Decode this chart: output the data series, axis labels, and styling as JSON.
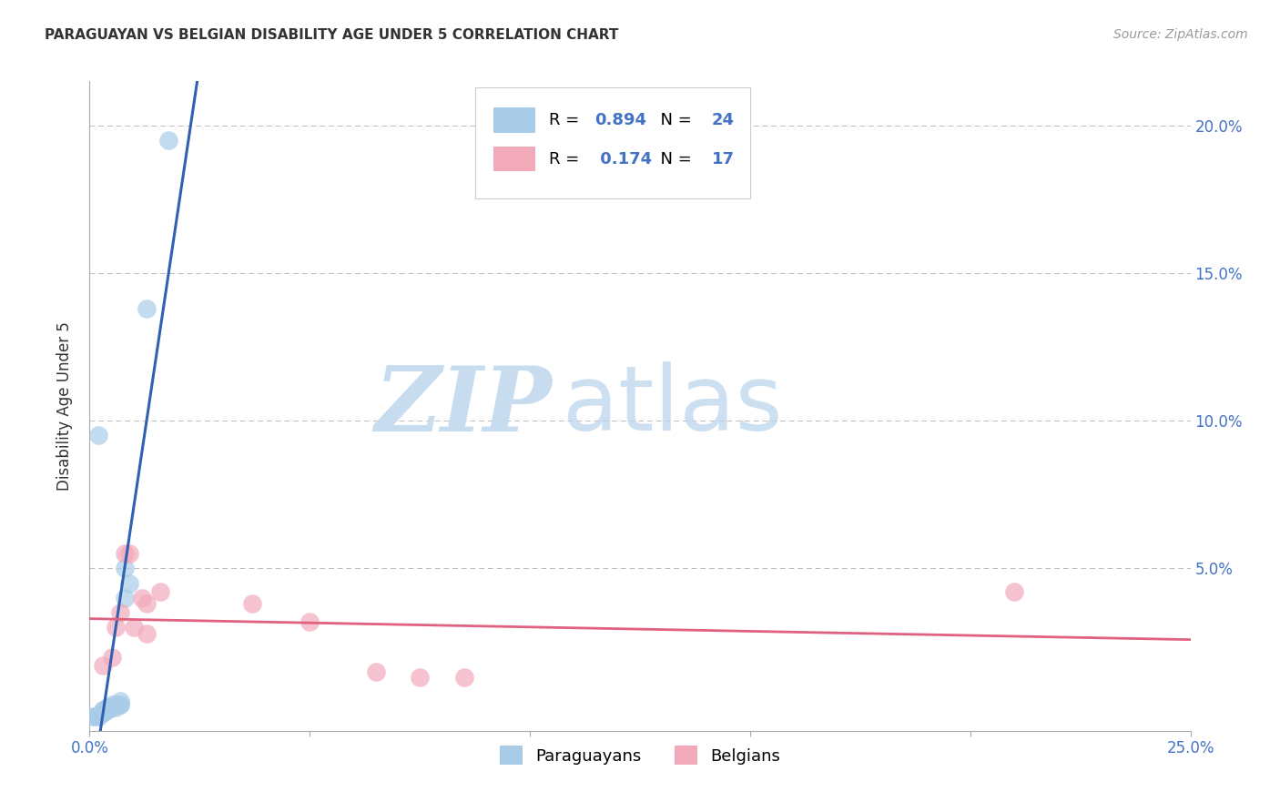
{
  "title": "PARAGUAYAN VS BELGIAN DISABILITY AGE UNDER 5 CORRELATION CHART",
  "source": "Source: ZipAtlas.com",
  "ylabel": "Disability Age Under 5",
  "watermark_zip": "ZIP",
  "watermark_atlas": "atlas",
  "xlim": [
    0.0,
    0.25
  ],
  "ylim": [
    -0.005,
    0.215
  ],
  "yticks": [
    0.0,
    0.05,
    0.1,
    0.15,
    0.2
  ],
  "ytick_labels": [
    "",
    "5.0%",
    "10.0%",
    "15.0%",
    "20.0%"
  ],
  "xticks": [
    0.0,
    0.05,
    0.1,
    0.15,
    0.2,
    0.25
  ],
  "xtick_labels": [
    "0.0%",
    "",
    "",
    "",
    "",
    "25.0%"
  ],
  "r_paraguayan": 0.894,
  "n_paraguayan": 24,
  "r_belgian": 0.174,
  "n_belgian": 17,
  "paraguayan_color": "#A8CCE8",
  "belgian_color": "#F2AABB",
  "paraguayan_line_color": "#3060B0",
  "belgian_line_color": "#E06080",
  "paraguayan_points": [
    [
      0.001,
      0.0
    ],
    [
      0.001,
      0.0
    ],
    [
      0.002,
      0.0
    ],
    [
      0.002,
      0.0
    ],
    [
      0.003,
      0.001
    ],
    [
      0.003,
      0.001
    ],
    [
      0.003,
      0.002
    ],
    [
      0.003,
      0.002
    ],
    [
      0.004,
      0.002
    ],
    [
      0.004,
      0.003
    ],
    [
      0.004,
      0.003
    ],
    [
      0.005,
      0.003
    ],
    [
      0.005,
      0.004
    ],
    [
      0.006,
      0.003
    ],
    [
      0.006,
      0.004
    ],
    [
      0.007,
      0.004
    ],
    [
      0.007,
      0.004
    ],
    [
      0.007,
      0.005
    ],
    [
      0.008,
      0.04
    ],
    [
      0.002,
      0.095
    ],
    [
      0.008,
      0.05
    ],
    [
      0.009,
      0.045
    ],
    [
      0.013,
      0.138
    ],
    [
      0.018,
      0.195
    ]
  ],
  "belgian_points": [
    [
      0.003,
      0.017
    ],
    [
      0.005,
      0.02
    ],
    [
      0.006,
      0.03
    ],
    [
      0.007,
      0.035
    ],
    [
      0.008,
      0.055
    ],
    [
      0.009,
      0.055
    ],
    [
      0.01,
      0.03
    ],
    [
      0.012,
      0.04
    ],
    [
      0.013,
      0.038
    ],
    [
      0.013,
      0.028
    ],
    [
      0.016,
      0.042
    ],
    [
      0.037,
      0.038
    ],
    [
      0.05,
      0.032
    ],
    [
      0.065,
      0.015
    ],
    [
      0.075,
      0.013
    ],
    [
      0.085,
      0.013
    ],
    [
      0.21,
      0.042
    ]
  ],
  "legend_label_paraguayan": "Paraguayans",
  "legend_label_belgian": "Belgians",
  "background_color": "#FFFFFF",
  "grid_color": "#BBBBBB"
}
